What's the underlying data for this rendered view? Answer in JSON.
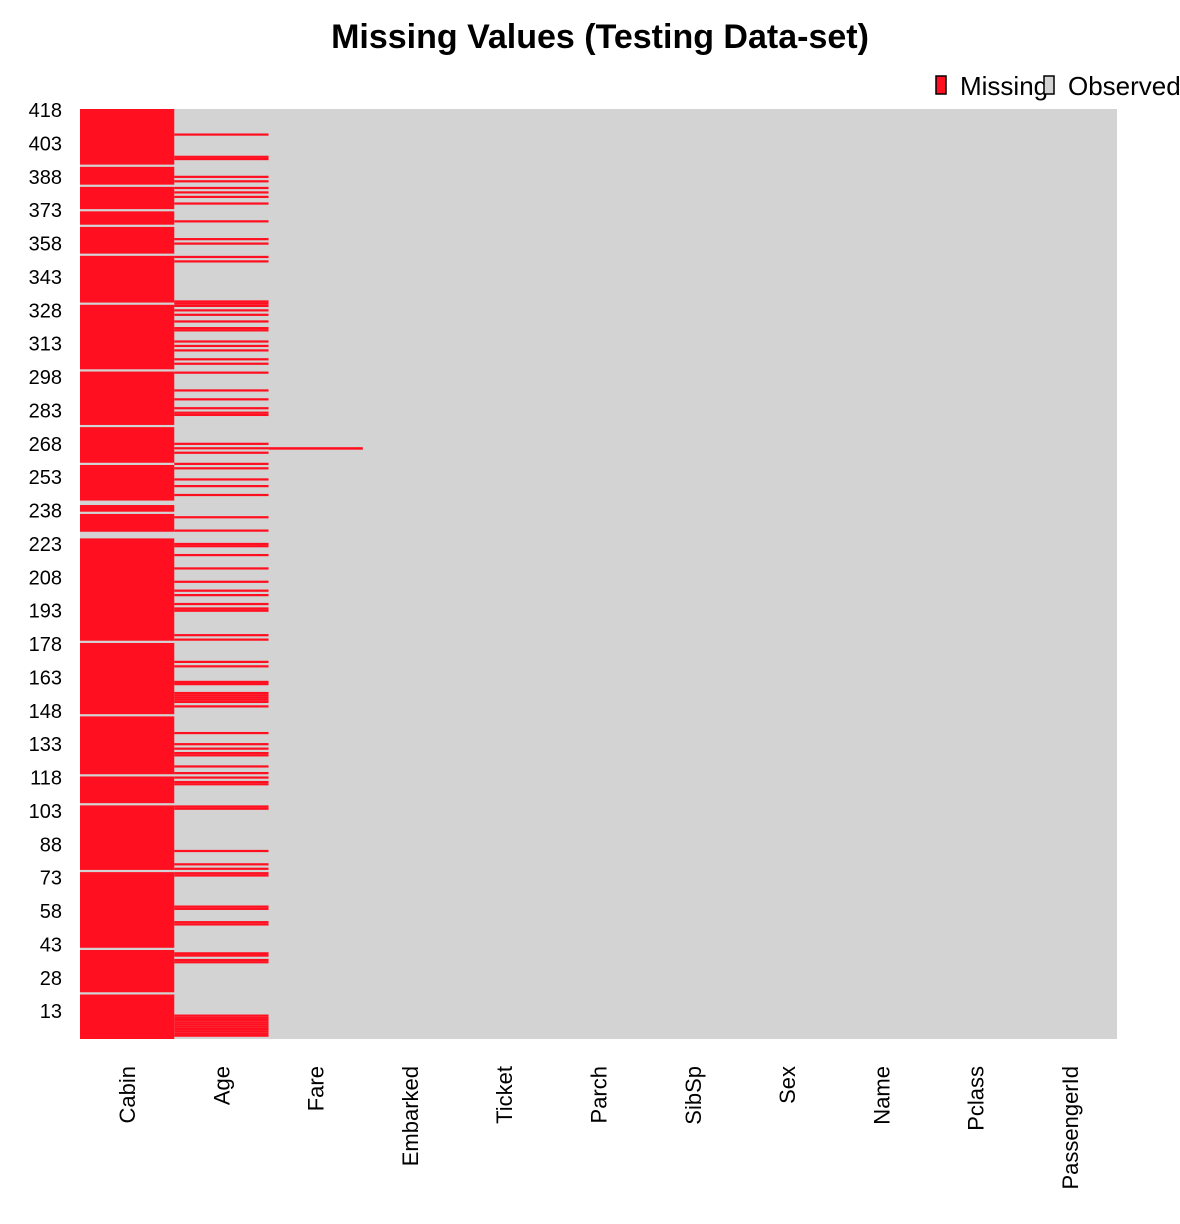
{
  "chart_data": {
    "type": "heatmap",
    "title": "Missing Values (Testing Data-set)",
    "xlabel": "",
    "ylabel": "",
    "n_rows": 418,
    "columns": [
      "Cabin",
      "Age",
      "Fare",
      "Embarked",
      "Ticket",
      "Parch",
      "SibSp",
      "Sex",
      "Name",
      "Pclass",
      "PassengerId"
    ],
    "y_ticks": [
      13,
      28,
      43,
      58,
      73,
      88,
      103,
      118,
      133,
      148,
      163,
      178,
      193,
      208,
      223,
      238,
      253,
      268,
      283,
      298,
      313,
      328,
      343,
      358,
      373,
      388,
      403,
      418
    ],
    "legend": {
      "position": "top-right",
      "entries": [
        {
          "label": "Missing",
          "color": "#ff0f1f"
        },
        {
          "label": "Observed",
          "color": "#d3d3d3"
        }
      ]
    },
    "colors": {
      "missing": "#ff0f1f",
      "observed": "#d3d3d3"
    },
    "missing_rows": {
      "Cabin": [
        [
          1,
          20
        ],
        [
          22,
          40
        ],
        [
          42,
          75
        ],
        [
          77,
          105
        ],
        [
          107,
          118
        ],
        [
          120,
          145
        ],
        [
          147,
          178
        ],
        [
          180,
          225
        ],
        [
          229,
          236
        ],
        [
          238,
          240
        ],
        [
          243,
          258
        ],
        [
          260,
          275
        ],
        [
          277,
          300
        ],
        [
          302,
          330
        ],
        [
          332,
          352
        ],
        [
          354,
          365
        ],
        [
          367,
          372
        ],
        [
          374,
          383
        ],
        [
          385,
          392
        ],
        [
          394,
          418
        ]
      ],
      "Age": [
        2,
        3,
        4,
        5,
        6,
        7,
        8,
        9,
        10,
        11,
        35,
        36,
        38,
        39,
        52,
        53,
        59,
        60,
        74,
        75,
        77,
        79,
        85,
        104,
        105,
        115,
        116,
        118,
        120,
        123,
        128,
        129,
        131,
        133,
        138,
        150,
        152,
        153,
        154,
        155,
        156,
        160,
        161,
        168,
        170,
        180,
        182,
        193,
        194,
        196,
        200,
        202,
        206,
        212,
        218,
        222,
        223,
        229,
        235,
        245,
        249,
        252,
        257,
        259,
        264,
        266,
        268,
        281,
        282,
        284,
        288,
        292,
        300,
        304,
        306,
        310,
        312,
        314,
        319,
        320,
        323,
        326,
        328,
        330,
        331,
        332,
        350,
        352,
        358,
        360,
        368,
        376,
        379,
        381,
        383,
        386,
        388,
        396,
        397,
        407
      ]
    }
  }
}
